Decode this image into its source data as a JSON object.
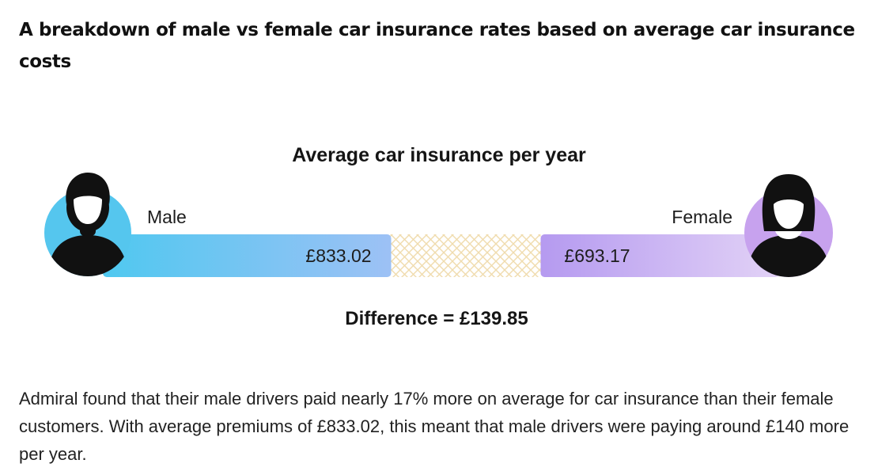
{
  "article": {
    "heading": "A breakdown of male vs female car insurance rates based on average car insurance costs",
    "body": "Admiral found that their male drivers paid nearly 17% more on average for car insurance than their female customers. With average premiums of £833.02, this meant that male drivers were paying around £140 more per year."
  },
  "chart_data": {
    "type": "bar",
    "title": "Average car insurance per year",
    "categories": [
      "Male",
      "Female"
    ],
    "series": [
      {
        "values": [
          833.02,
          693.17
        ]
      }
    ],
    "value_labels": [
      "£833.02",
      "£693.17"
    ],
    "annotation": "Difference = £139.85",
    "difference": 139.85,
    "colors": {
      "male_start": "#4fc8f0",
      "male_end": "#9dc1f5",
      "female_start": "#b59af0",
      "female_end": "#e2d2f6",
      "male_avatar_bg": "#55c6ee",
      "female_avatar_bg": "#c7a2ee",
      "hatch": "#f0dcae",
      "silhouette": "#111111"
    },
    "icons": [
      "male-avatar-icon",
      "female-avatar-icon"
    ]
  }
}
